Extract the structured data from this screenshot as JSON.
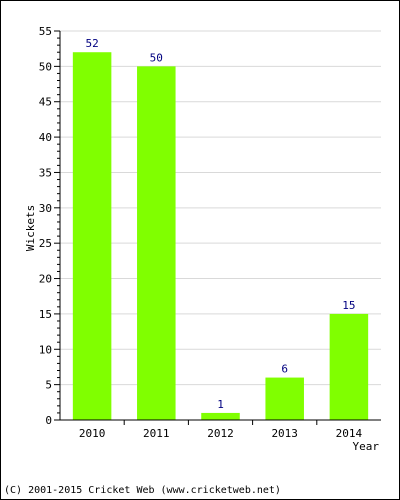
{
  "chart_data": {
    "type": "bar",
    "categories": [
      "2010",
      "2011",
      "2012",
      "2013",
      "2014"
    ],
    "values": [
      52,
      50,
      1,
      6,
      15
    ],
    "data_labels": [
      "52",
      "50",
      "1",
      "6",
      "15"
    ],
    "title": "",
    "xlabel": "Year",
    "ylabel": "Wickets",
    "ylim": [
      0,
      55
    ],
    "yticks": [
      "0",
      "5",
      "10",
      "15",
      "20",
      "25",
      "30",
      "35",
      "40",
      "45",
      "50",
      "55"
    ],
    "grid": true,
    "bar_color": "#80ff00",
    "label_color": "#000080"
  },
  "footer": {
    "copyright": "(C) 2001-2015 Cricket Web (www.cricketweb.net)"
  }
}
